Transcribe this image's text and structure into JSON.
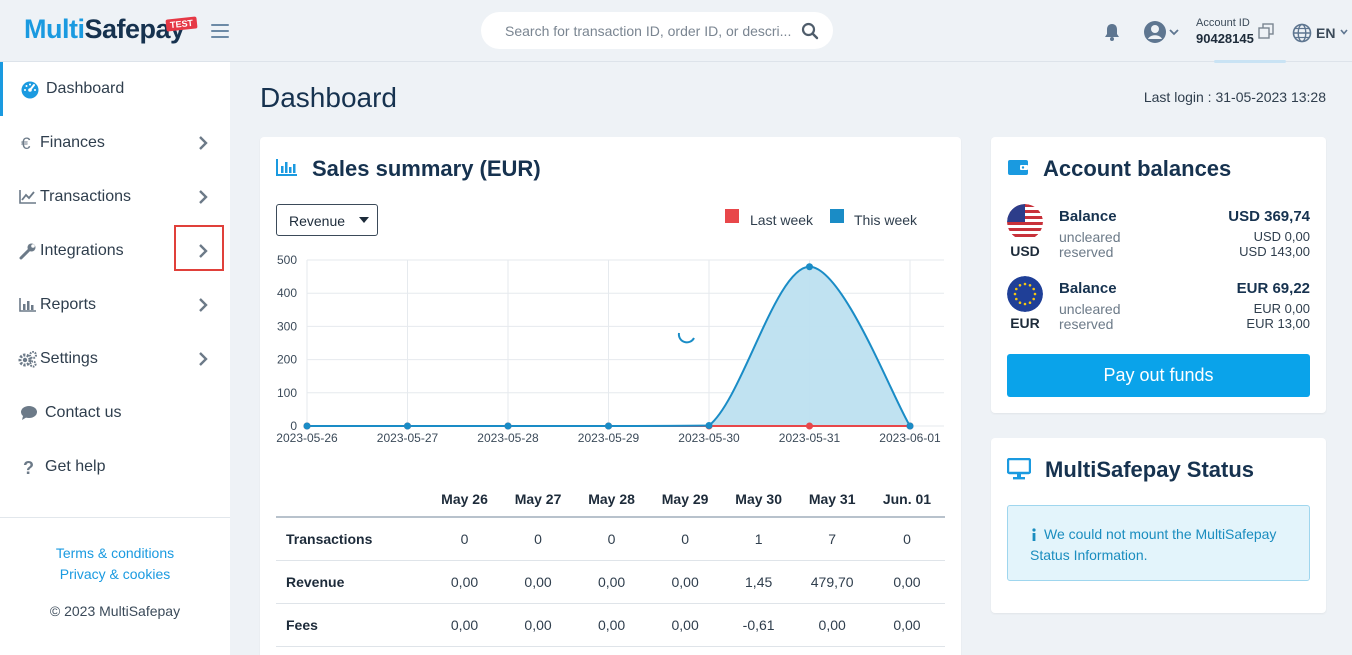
{
  "header": {
    "logo_multi": "Multi",
    "logo_safe": "Safepay",
    "logo_badge": "TEST",
    "search_placeholder": "Search for transaction ID, order ID, or descri...",
    "account_label": "Account ID",
    "account_id": "90428145",
    "language": "EN"
  },
  "sidebar": {
    "items": [
      {
        "label": "Dashboard",
        "icon": "dashboard-icon"
      },
      {
        "label": "Finances",
        "icon": "euro-icon"
      },
      {
        "label": "Transactions",
        "icon": "line-chart-icon"
      },
      {
        "label": "Integrations",
        "icon": "wrench-icon"
      },
      {
        "label": "Reports",
        "icon": "bar-chart-icon"
      },
      {
        "label": "Settings",
        "icon": "gears-icon"
      },
      {
        "label": "Contact us",
        "icon": "chat-icon"
      },
      {
        "label": "Get help",
        "icon": "question-icon"
      }
    ],
    "terms": "Terms & conditions",
    "privacy": "Privacy & cookies",
    "copyright": "© 2023 MultiSafepay"
  },
  "main": {
    "title": "Dashboard",
    "last_login": "Last login : 31-05-2023 13:28"
  },
  "sales": {
    "title": "Sales summary (EUR)",
    "select_value": "Revenue",
    "legend_last": "Last week",
    "legend_this": "This week",
    "colors": {
      "last_week": "#e8474a",
      "this_week": "#1a8cc6",
      "fill": "#bde0f0"
    },
    "table_headers": [
      "",
      "May 26",
      "May 27",
      "May 28",
      "May 29",
      "May 30",
      "May 31",
      "Jun. 01"
    ],
    "rows": [
      {
        "label": "Transactions",
        "values": [
          "0",
          "0",
          "0",
          "0",
          "1",
          "7",
          "0"
        ]
      },
      {
        "label": "Revenue",
        "values": [
          "0,00",
          "0,00",
          "0,00",
          "0,00",
          "1,45",
          "479,70",
          "0,00"
        ]
      },
      {
        "label": "Fees",
        "values": [
          "0,00",
          "0,00",
          "0,00",
          "0,00",
          "-0,61",
          "0,00",
          "0,00"
        ]
      }
    ]
  },
  "chart_data": {
    "type": "area",
    "title": "Sales summary (EUR)",
    "x": [
      "2023-05-26",
      "2023-05-27",
      "2023-05-28",
      "2023-05-29",
      "2023-05-30",
      "2023-05-31",
      "2023-06-01"
    ],
    "series": [
      {
        "name": "Last week",
        "values": [
          0,
          0,
          0,
          0,
          0,
          0,
          0
        ]
      },
      {
        "name": "This week",
        "values": [
          0,
          0,
          0,
          0,
          1.45,
          479.7,
          0
        ]
      }
    ],
    "yticks": [
      0,
      100,
      200,
      300,
      400,
      500
    ],
    "ylim": [
      0,
      500
    ],
    "grid": true,
    "legend": "top-right"
  },
  "balances": {
    "title": "Account balances",
    "accounts": [
      {
        "currency": "USD",
        "label": "Balance",
        "balance": "USD 369,74",
        "uncleared_label": "uncleared",
        "uncleared": "USD 0,00",
        "reserved_label": "reserved",
        "reserved": "USD 143,00"
      },
      {
        "currency": "EUR",
        "label": "Balance",
        "balance": "EUR 69,22",
        "uncleared_label": "uncleared",
        "uncleared": "EUR 0,00",
        "reserved_label": "reserved",
        "reserved": "EUR 13,00"
      }
    ],
    "payout_label": "Pay out funds"
  },
  "status": {
    "title": "MultiSafepay Status",
    "message": "We could not mount the MultiSafepay Status Information."
  }
}
